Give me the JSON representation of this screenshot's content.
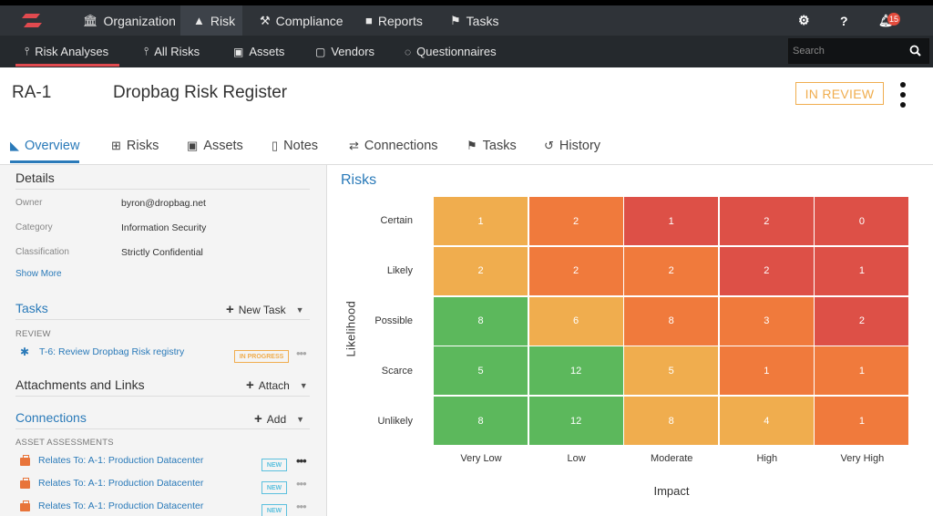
{
  "app": {
    "top_nav": [
      {
        "label": "Organization",
        "icon": "bank-icon"
      },
      {
        "label": "Risk",
        "icon": "flame-icon",
        "active": true
      },
      {
        "label": "Compliance",
        "icon": "gavel-icon"
      },
      {
        "label": "Reports",
        "icon": "document-icon"
      },
      {
        "label": "Tasks",
        "icon": "flag-icon"
      }
    ],
    "notifications_count": "15",
    "sub_nav": [
      {
        "label": "Risk Analyses",
        "icon": "tuning-fork-icon",
        "active": true
      },
      {
        "label": "All Risks",
        "icon": "tuning-fork-icon"
      },
      {
        "label": "Assets",
        "icon": "briefcase-icon"
      },
      {
        "label": "Vendors",
        "icon": "shopping-bag-icon"
      },
      {
        "label": "Questionnaires",
        "icon": "chat-bubble-icon"
      }
    ],
    "search": {
      "placeholder": "Search",
      "value": ""
    }
  },
  "record": {
    "id": "RA-1",
    "title": "Dropbag Risk Register",
    "status": "IN REVIEW"
  },
  "tabs": [
    {
      "label": "Overview",
      "icon": "area-chart-icon",
      "active": true
    },
    {
      "label": "Risks",
      "icon": "table-icon"
    },
    {
      "label": "Assets",
      "icon": "briefcase-icon"
    },
    {
      "label": "Notes",
      "icon": "clipboard-icon"
    },
    {
      "label": "Connections",
      "icon": "exchange-icon"
    },
    {
      "label": "Tasks",
      "icon": "flag-icon"
    },
    {
      "label": "History",
      "icon": "history-icon"
    }
  ],
  "details": {
    "heading": "Details",
    "fields": [
      {
        "key": "Owner",
        "value": "byron@dropbag.net"
      },
      {
        "key": "Category",
        "value": "Information Security"
      },
      {
        "key": "Classification",
        "value": "Strictly Confidential"
      }
    ],
    "show_more": "Show More"
  },
  "tasks": {
    "heading": "Tasks",
    "action": "New Task",
    "group": "REVIEW",
    "items": [
      {
        "label": "T-6: Review Dropbag Risk registry",
        "status": "IN PROGRESS"
      }
    ]
  },
  "attachments": {
    "heading": "Attachments and Links",
    "action": "Attach"
  },
  "connections": {
    "heading": "Connections",
    "action": "Add",
    "group": "ASSET ASSESSMENTS",
    "items": [
      {
        "label": "Relates To: A-1: Production Datacenter",
        "badge": "NEW"
      },
      {
        "label": "Relates To: A-1: Production Datacenter",
        "badge": "NEW"
      },
      {
        "label": "Relates To: A-1: Production Datacenter",
        "badge": "NEW"
      }
    ]
  },
  "risks_panel": {
    "title": "Risks"
  },
  "chart_data": {
    "type": "heatmap",
    "title": "Risks",
    "xlabel": "Impact",
    "ylabel": "Likelihood",
    "x_categories": [
      "Very Low",
      "Low",
      "Moderate",
      "High",
      "Very High"
    ],
    "y_categories": [
      "Certain",
      "Likely",
      "Possible",
      "Scarce",
      "Unlikely"
    ],
    "values": [
      [
        1,
        2,
        1,
        2,
        0
      ],
      [
        2,
        2,
        2,
        2,
        1
      ],
      [
        8,
        6,
        8,
        3,
        2
      ],
      [
        5,
        12,
        5,
        1,
        1
      ],
      [
        8,
        12,
        8,
        4,
        1
      ]
    ],
    "cell_colors": [
      [
        "#f0ad4e",
        "#f07a3c",
        "#dd5047",
        "#dd5047",
        "#dd5047"
      ],
      [
        "#f0ad4e",
        "#f07a3c",
        "#f07a3c",
        "#dd5047",
        "#dd5047"
      ],
      [
        "#5cb85c",
        "#f0ad4e",
        "#f07a3c",
        "#f07a3c",
        "#dd5047"
      ],
      [
        "#5cb85c",
        "#5cb85c",
        "#f0ad4e",
        "#f07a3c",
        "#f07a3c"
      ],
      [
        "#5cb85c",
        "#5cb85c",
        "#f0ad4e",
        "#f0ad4e",
        "#f07a3c"
      ]
    ]
  }
}
